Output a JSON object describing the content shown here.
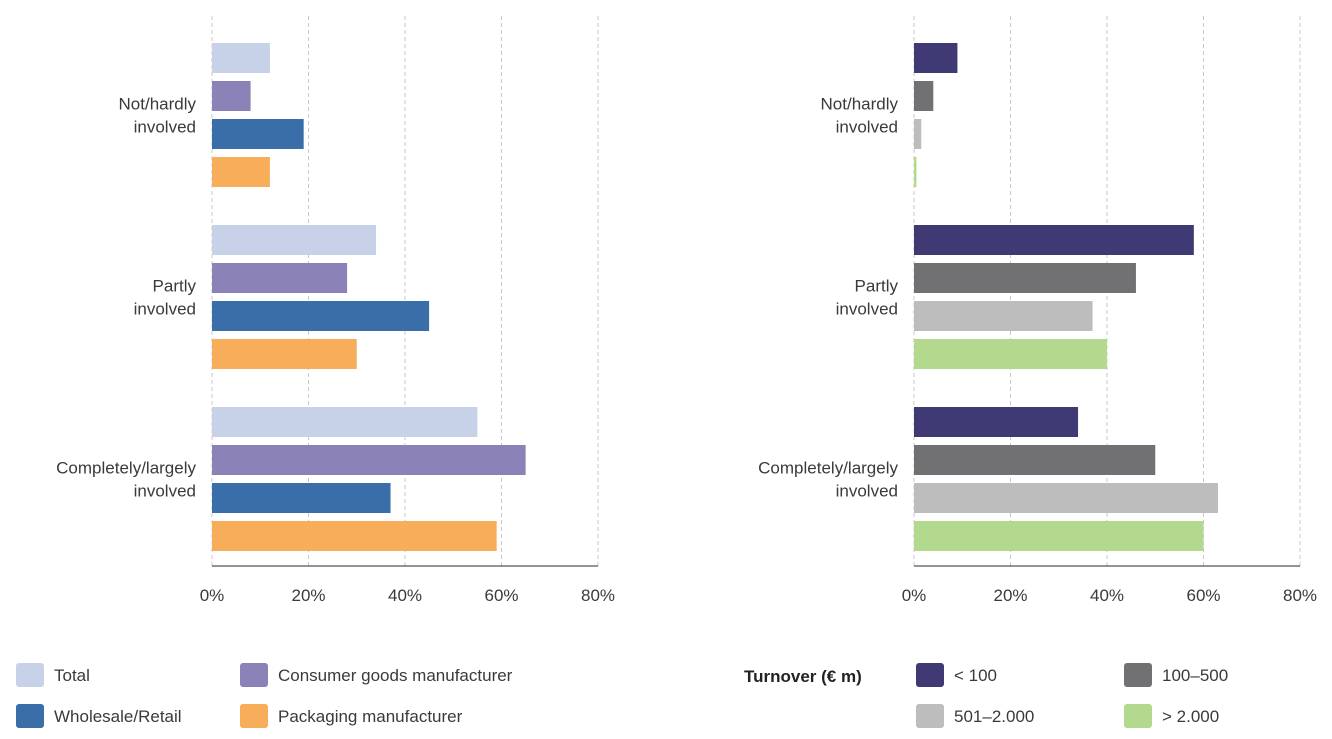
{
  "chart_data": [
    {
      "type": "bar",
      "orientation": "horizontal",
      "categories": [
        [
          "Not/hardly",
          "involved"
        ],
        [
          "Partly",
          "involved"
        ],
        [
          "Completely/largely",
          "involved"
        ]
      ],
      "series": [
        {
          "name": "Total",
          "color": "#c7d1e8",
          "values": [
            12,
            34,
            55
          ]
        },
        {
          "name": "Consumer goods manufacturer",
          "color": "#8b82b8",
          "values": [
            8,
            28,
            65
          ]
        },
        {
          "name": "Wholesale/Retail",
          "color": "#3a6ea9",
          "values": [
            19,
            45,
            37
          ]
        },
        {
          "name": "Packaging manufacturer",
          "color": "#f8ad5a",
          "values": [
            12,
            30,
            59
          ]
        }
      ],
      "xlim": [
        0,
        80
      ],
      "ticks": [
        "0%",
        "20%",
        "40%",
        "60%",
        "80%"
      ],
      "grid": true,
      "legend": {
        "title": "",
        "placement": "bottom"
      }
    },
    {
      "type": "bar",
      "orientation": "horizontal",
      "categories": [
        [
          "Not/hardly",
          "involved"
        ],
        [
          "Partly",
          "involved"
        ],
        [
          "Completely/largely",
          "involved"
        ]
      ],
      "series": [
        {
          "name": "< 100",
          "color": "#3f3a73",
          "values": [
            9,
            58,
            34
          ]
        },
        {
          "name": "100–500",
          "color": "#717073",
          "values": [
            4,
            46,
            50
          ]
        },
        {
          "name": "501–2.000",
          "color": "#bdbdbd",
          "values": [
            1.5,
            37,
            63
          ]
        },
        {
          "name": "> 2.000",
          "color": "#b3d98f",
          "values": [
            0.5,
            40,
            60
          ]
        }
      ],
      "xlim": [
        0,
        80
      ],
      "ticks": [
        "0%",
        "20%",
        "40%",
        "60%",
        "80%"
      ],
      "grid": true,
      "legend": {
        "title": "Turnover (€ m)",
        "placement": "bottom"
      }
    }
  ]
}
